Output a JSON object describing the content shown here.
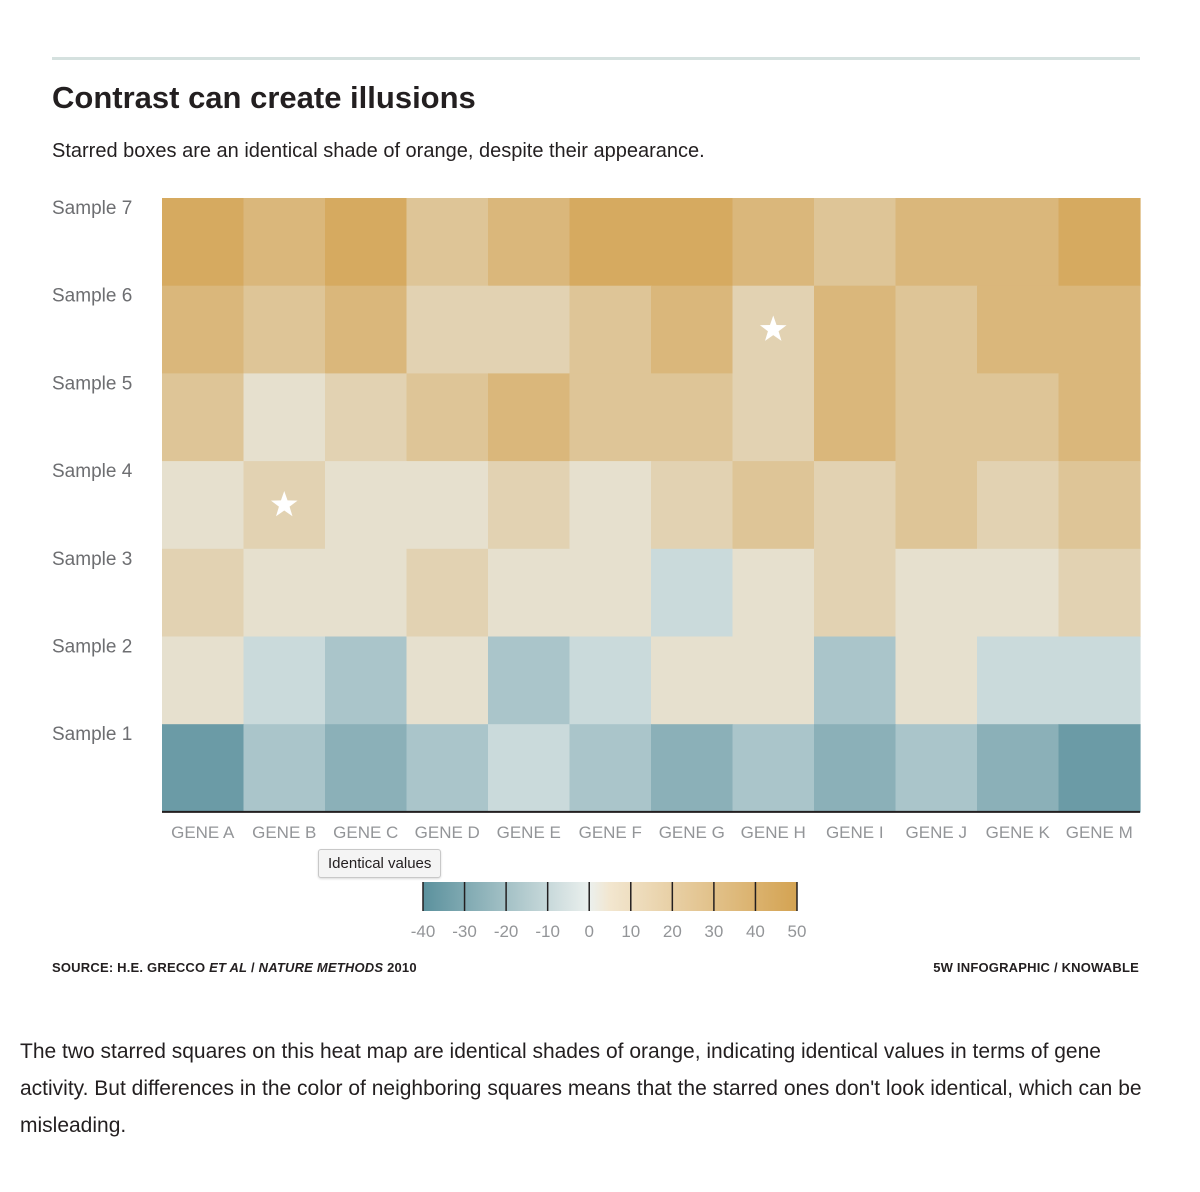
{
  "title": "Contrast can create illusions",
  "subtitle": "Starred boxes are an identical shade of orange, despite their appearance.",
  "tooltip": "Identical values",
  "source": {
    "left_prefix": "SOURCE: H.E. GRECCO ",
    "left_italic_1": "ET AL",
    "left_mid": " / ",
    "left_italic_2": "NATURE METHODS",
    "left_suffix": " 2010",
    "right": "5W INFOGRAPHIC / KNOWABLE"
  },
  "caption": "The two starred squares on this heat map are identical shades of orange, indicating identical values in terms of gene activity. But differences in the color of neighboring squares means that the starred ones don't look identical, which can be misleading.",
  "colors": {
    "negative": "#5b919d",
    "neutral": "#ebf0ee",
    "positive": "#d4a352",
    "star": "#ffffff",
    "axis": "#231f20"
  },
  "chart_data": {
    "type": "heatmap",
    "title": "Contrast can create illusions",
    "columns": [
      "GENE A",
      "GENE B",
      "GENE C",
      "GENE D",
      "GENE E",
      "GENE F",
      "GENE G",
      "GENE H",
      "GENE I",
      "GENE J",
      "GENE K",
      "GENE M"
    ],
    "rows": [
      "Sample 7",
      "Sample 6",
      "Sample 5",
      "Sample 4",
      "Sample 3",
      "Sample 2",
      "Sample 1"
    ],
    "values": [
      [
        45,
        35,
        45,
        25,
        35,
        45,
        45,
        35,
        25,
        35,
        35,
        45
      ],
      [
        35,
        25,
        35,
        15,
        15,
        25,
        35,
        15,
        35,
        25,
        35,
        35
      ],
      [
        25,
        5,
        15,
        25,
        35,
        25,
        25,
        15,
        35,
        25,
        25,
        35
      ],
      [
        5,
        15,
        5,
        5,
        15,
        5,
        15,
        25,
        15,
        25,
        15,
        25
      ],
      [
        15,
        5,
        5,
        15,
        5,
        5,
        -5,
        5,
        15,
        5,
        5,
        15
      ],
      [
        5,
        -5,
        -15,
        5,
        -15,
        -5,
        5,
        5,
        -15,
        5,
        -5,
        -5
      ],
      [
        -35,
        -15,
        -25,
        -15,
        -5,
        -15,
        -25,
        -15,
        -25,
        -15,
        -25,
        -35
      ]
    ],
    "starred": [
      [
        1,
        7
      ],
      [
        3,
        1
      ]
    ],
    "color_scale": {
      "ticks": [
        -40,
        -30,
        -20,
        -10,
        0,
        10,
        20,
        30,
        40,
        50
      ],
      "range": [
        -40,
        50
      ]
    }
  }
}
